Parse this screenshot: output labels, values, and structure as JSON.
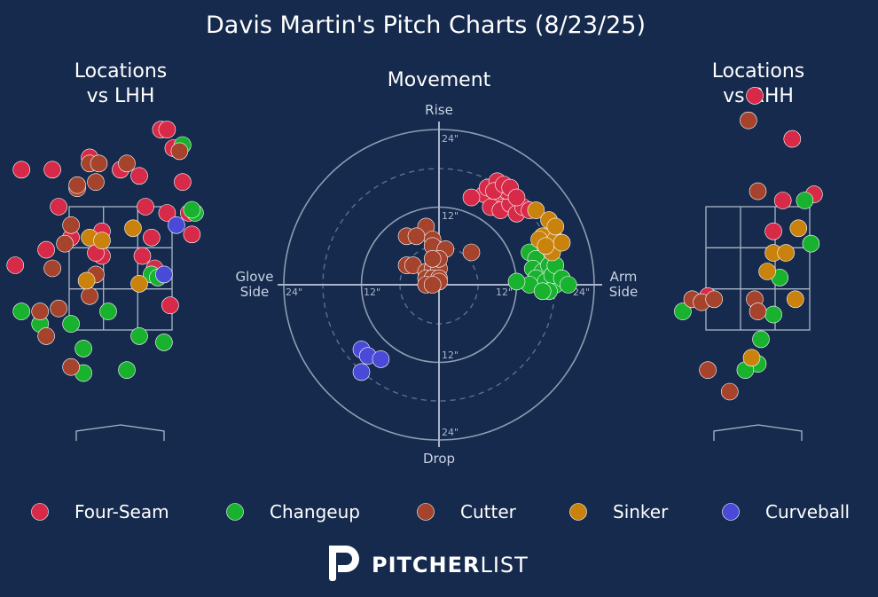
{
  "title": "Davis Martin's Pitch Charts (8/23/25)",
  "panels": {
    "lhh_title": [
      "Locations",
      "vs LHH"
    ],
    "movement_title": "Movement",
    "rhh_title": [
      "Locations",
      "vs RHH"
    ]
  },
  "movement_axes": {
    "top": "Rise",
    "bottom": "Drop",
    "left": [
      "Glove",
      "Side"
    ],
    "right": [
      "Arm",
      "Side"
    ],
    "ring_labels": {
      "inner": "12\"",
      "outer": "24\""
    }
  },
  "brand": {
    "bold": "PITCHER",
    "light": "LIST"
  },
  "pitch_colors": {
    "Four-Seam": "#d72a48",
    "Changeup": "#19b22f",
    "Cutter": "#a6432c",
    "Sinker": "#c9820c",
    "Curveball": "#4a4ad8"
  },
  "chart_data": [
    {
      "type": "scatter",
      "title": "Locations vs LHH",
      "series": [
        {
          "name": "Four-Seam",
          "points": [
            [
              -1.6,
              4.1
            ],
            [
              -1.1,
              4.1
            ],
            [
              -0.5,
              4.3
            ],
            [
              0,
              4.1
            ],
            [
              0.3,
              4.0
            ],
            [
              -1.0,
              3.5
            ],
            [
              -0.8,
              3.0
            ],
            [
              -0.3,
              2.7
            ],
            [
              0.4,
              3.5
            ],
            [
              0.75,
              3.4
            ],
            [
              0.5,
              3.0
            ],
            [
              -0.3,
              3.1
            ],
            [
              0.8,
              1.9
            ],
            [
              1.0,
              3.9
            ],
            [
              1.1,
              3.4
            ],
            [
              -1.2,
              2.8
            ],
            [
              0.65,
              4.75
            ],
            [
              0.75,
              4.75
            ],
            [
              0.85,
              4.45
            ],
            [
              -1.7,
              2.55
            ],
            [
              0.35,
              2.7
            ],
            [
              -0.4,
              2.75
            ],
            [
              1.15,
              3.05
            ],
            [
              0.55,
              2.5
            ]
          ]
        },
        {
          "name": "Changeup",
          "points": [
            [
              1.0,
              4.5
            ],
            [
              1.2,
              3.4
            ],
            [
              0.5,
              2.4
            ],
            [
              -1.6,
              1.8
            ],
            [
              -1.3,
              1.6
            ],
            [
              -0.8,
              1.6
            ],
            [
              -0.2,
              1.8
            ],
            [
              -0.6,
              1.2
            ],
            [
              0.3,
              1.4
            ],
            [
              0.7,
              1.3
            ],
            [
              -0.6,
              0.8
            ],
            [
              0.1,
              0.85
            ],
            [
              1.15,
              3.45
            ],
            [
              0.6,
              2.35
            ]
          ]
        },
        {
          "name": "Cutter",
          "points": [
            [
              -0.5,
              4.2
            ],
            [
              -0.7,
              3.8
            ],
            [
              -0.4,
              3.9
            ],
            [
              0.1,
              4.2
            ],
            [
              -1.1,
              2.5
            ],
            [
              -0.8,
              3.2
            ],
            [
              -0.4,
              2.4
            ],
            [
              -0.5,
              2.05
            ],
            [
              -1.0,
              1.85
            ],
            [
              -1.3,
              1.8
            ],
            [
              -1.2,
              1.4
            ],
            [
              -0.8,
              0.9
            ],
            [
              0.95,
              4.4
            ],
            [
              -0.7,
              3.85
            ],
            [
              -0.35,
              4.2
            ],
            [
              -0.9,
              2.9
            ]
          ]
        },
        {
          "name": "Sinker",
          "points": [
            [
              0.2,
              3.15
            ],
            [
              -0.5,
              3.0
            ],
            [
              -0.3,
              2.95
            ],
            [
              -0.55,
              2.3
            ],
            [
              0.3,
              2.25
            ]
          ]
        },
        {
          "name": "Curveball",
          "points": [
            [
              0.9,
              3.2
            ],
            [
              0.7,
              2.4
            ]
          ]
        }
      ]
    },
    {
      "type": "scatter",
      "title": "Movement",
      "xlim": [
        -24,
        24
      ],
      "ylim": [
        -24,
        24
      ],
      "series": [
        {
          "name": "Four-Seam",
          "points": [
            [
              7,
              14
            ],
            [
              7.5,
              15
            ],
            [
              9,
              13
            ],
            [
              10,
              12
            ],
            [
              9,
              16
            ],
            [
              8,
              12
            ],
            [
              9.5,
              11.5
            ],
            [
              11,
              12.5
            ],
            [
              10.5,
              14.5
            ],
            [
              12,
              11
            ],
            [
              13,
              12
            ],
            [
              14,
              11.5
            ],
            [
              5,
              13.5
            ],
            [
              8.5,
              14.5
            ],
            [
              10,
              15.5
            ],
            [
              11,
              15
            ],
            [
              12,
              13.5
            ]
          ]
        },
        {
          "name": "Changeup",
          "points": [
            [
              14,
              5
            ],
            [
              15,
              4
            ],
            [
              14.5,
              2.5
            ],
            [
              16,
              2
            ],
            [
              17,
              3
            ],
            [
              15,
              1
            ],
            [
              16.5,
              0.5
            ],
            [
              18,
              0
            ],
            [
              17.5,
              1.5
            ],
            [
              18,
              3
            ],
            [
              19,
              1
            ],
            [
              20,
              0
            ],
            [
              17,
              -1
            ],
            [
              14,
              0
            ],
            [
              12,
              0.5
            ],
            [
              16,
              -1
            ]
          ]
        },
        {
          "name": "Sinker",
          "points": [
            [
              15,
              11.5
            ],
            [
              17,
              10
            ],
            [
              16,
              7.5
            ],
            [
              18,
              7
            ],
            [
              17.5,
              5
            ],
            [
              19,
              6.5
            ],
            [
              15.5,
              7
            ],
            [
              18,
              9
            ],
            [
              16.5,
              6
            ]
          ]
        },
        {
          "name": "Cutter",
          "points": [
            [
              -2,
              9
            ],
            [
              -5,
              7.5
            ],
            [
              -3.5,
              7.5
            ],
            [
              -1,
              7
            ],
            [
              -1,
              6
            ],
            [
              1,
              5.5
            ],
            [
              -5,
              3
            ],
            [
              -4,
              3
            ],
            [
              -2,
              2
            ],
            [
              -1,
              2.5
            ],
            [
              0,
              2.5
            ],
            [
              -2,
              1
            ],
            [
              -1,
              1
            ],
            [
              0,
              1
            ],
            [
              -2,
              0
            ],
            [
              0,
              0.5
            ],
            [
              -1,
              0
            ],
            [
              5,
              5
            ],
            [
              0,
              4
            ],
            [
              -1,
              4
            ]
          ]
        },
        {
          "name": "Curveball",
          "points": [
            [
              -12,
              -10
            ],
            [
              -11,
              -11
            ],
            [
              -9,
              -11.5
            ],
            [
              -12,
              -13.5
            ]
          ]
        }
      ]
    },
    {
      "type": "scatter",
      "title": "Locations vs RHH",
      "series": [
        {
          "name": "Four-Seam",
          "points": [
            [
              -0.05,
              5.3
            ],
            [
              0.55,
              4.6
            ],
            [
              0.9,
              3.7
            ],
            [
              0.4,
              3.6
            ],
            [
              0.25,
              3.1
            ],
            [
              -0.8,
              2.05
            ]
          ]
        },
        {
          "name": "Changeup",
          "points": [
            [
              0.75,
              3.6
            ],
            [
              0.85,
              2.9
            ],
            [
              0.35,
              2.35
            ],
            [
              0.25,
              1.75
            ],
            [
              -1.2,
              1.8
            ],
            [
              0.05,
              1.35
            ],
            [
              0.0,
              0.95
            ],
            [
              -0.2,
              0.85
            ]
          ]
        },
        {
          "name": "Cutter",
          "points": [
            [
              -0.15,
              4.9
            ],
            [
              0.0,
              3.75
            ],
            [
              -1.05,
              2.0
            ],
            [
              -0.9,
              1.95
            ],
            [
              -0.7,
              2.0
            ],
            [
              -0.05,
              2.0
            ],
            [
              0.0,
              1.8
            ],
            [
              -0.8,
              0.85
            ],
            [
              -0.45,
              0.5
            ]
          ]
        },
        {
          "name": "Sinker",
          "points": [
            [
              0.25,
              2.75
            ],
            [
              0.45,
              2.75
            ],
            [
              0.65,
              3.15
            ],
            [
              0.15,
              2.45
            ],
            [
              0.6,
              2.0
            ],
            [
              -0.1,
              1.05
            ]
          ]
        }
      ]
    }
  ],
  "legend": [
    {
      "label": "Four-Seam",
      "color": "#d72a48"
    },
    {
      "label": "Changeup",
      "color": "#19b22f"
    },
    {
      "label": "Cutter",
      "color": "#a6432c"
    },
    {
      "label": "Sinker",
      "color": "#c9820c"
    },
    {
      "label": "Curveball",
      "color": "#4a4ad8"
    }
  ]
}
